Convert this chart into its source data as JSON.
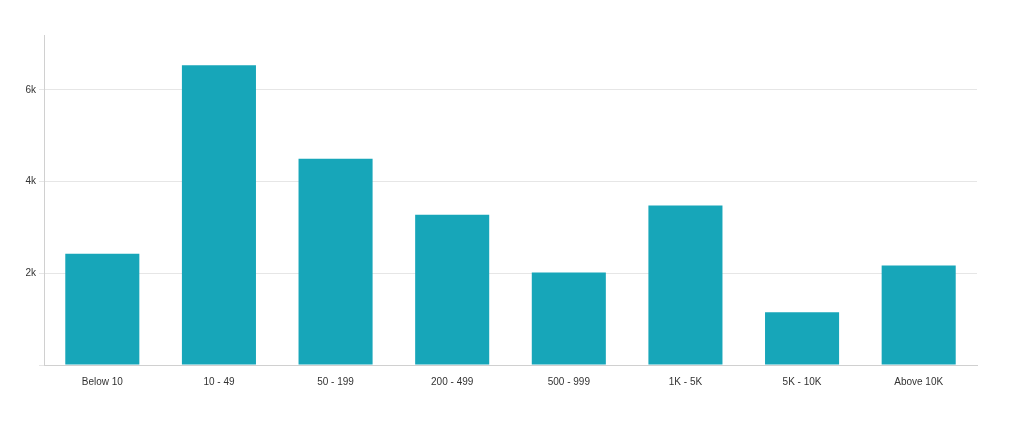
{
  "chart_data": {
    "type": "bar",
    "categories": [
      "Below 10",
      "10 - 49",
      "50 - 199",
      "200 - 499",
      "500 - 999",
      "1K - 5K",
      "5K - 10K",
      "Above 10K"
    ],
    "values": [
      2430,
      6540,
      4500,
      3280,
      2020,
      3480,
      1150,
      2170
    ],
    "color": "#17a6b9",
    "ylim": [
      0,
      7200
    ],
    "yticks": [
      {
        "value": 0,
        "label": null
      },
      {
        "value": 2000,
        "label": "2k"
      },
      {
        "value": 4000,
        "label": "4k"
      },
      {
        "value": 6000,
        "label": "6k"
      }
    ],
    "grid": "y",
    "legend": false
  }
}
